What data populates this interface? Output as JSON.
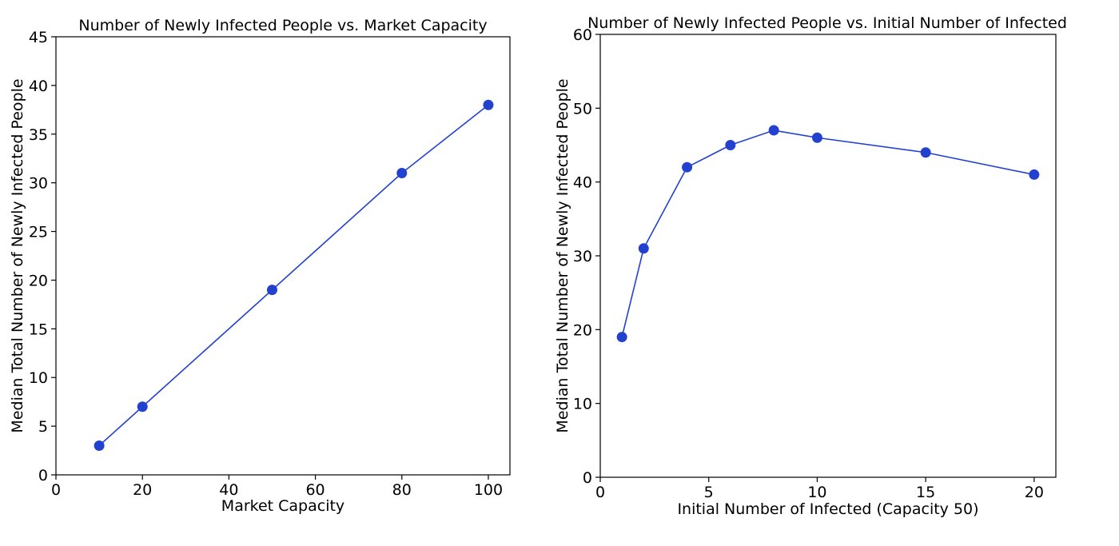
{
  "chart_data": [
    {
      "type": "line",
      "title": "Number of Newly Infected People vs. Market Capacity",
      "xlabel": "Market Capacity",
      "ylabel": "Median Total Number of Newly Infected People",
      "x": [
        10,
        20,
        50,
        80,
        100
      ],
      "series": [
        {
          "values": [
            3,
            7,
            19,
            31,
            38
          ]
        }
      ],
      "xlim": [
        0,
        105
      ],
      "ylim": [
        0,
        45
      ],
      "xticks": [
        0,
        20,
        40,
        60,
        80,
        100
      ],
      "yticks": [
        0,
        5,
        10,
        15,
        20,
        25,
        30,
        35,
        40,
        45
      ],
      "grid": false,
      "color": "#2341cf"
    },
    {
      "type": "line",
      "title": "Number of Newly Infected People vs. Initial Number of Infected",
      "xlabel": "Initial Number of Infected (Capacity 50)",
      "ylabel": "Median Total Number of Newly Infected People",
      "x": [
        1,
        2,
        4,
        6,
        8,
        10,
        15,
        20
      ],
      "series": [
        {
          "values": [
            19,
            31,
            42,
            45,
            47,
            46,
            44,
            41
          ]
        }
      ],
      "xlim": [
        0,
        21
      ],
      "ylim": [
        0,
        60
      ],
      "xticks": [
        0,
        5,
        10,
        15,
        20
      ],
      "yticks": [
        0,
        10,
        20,
        30,
        40,
        50,
        60
      ],
      "grid": false,
      "color": "#2341cf"
    }
  ]
}
